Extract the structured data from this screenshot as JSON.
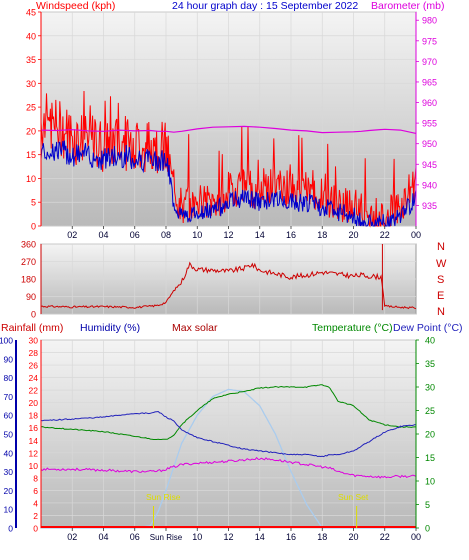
{
  "header": {
    "wind_title": "Windspeed (kph)",
    "graph_title": "24 hour graph day : 15 September 2022",
    "baro_title": "Barometer (mb)"
  },
  "bottom_header": {
    "rainfall": "Rainfall (mm)",
    "humidity": "Humidity (%)",
    "solar": "Max solar",
    "temperature": "Temperature (°C)",
    "dewpoint": "Dew Point (°C)"
  },
  "x_ticks": [
    "02",
    "04",
    "06",
    "08",
    "10",
    "12",
    "14",
    "16",
    "18",
    "20",
    "22",
    "00"
  ],
  "x_ticks_bottom": [
    "02",
    "04",
    "06",
    "Sun Rise",
    "10",
    "12",
    "14",
    "16",
    "18",
    "20",
    "22",
    "00"
  ],
  "sun_labels": {
    "rise": "Sun Rise",
    "set": "Sun Set"
  },
  "compass": [
    "N",
    "W",
    "S",
    "E",
    "N"
  ],
  "colors": {
    "wind": "#ff0000",
    "wind_avg": "#0000cc",
    "baro": "#dd00dd",
    "direction": "#cc0000",
    "humidity": "#0000aa",
    "temperature": "#008800",
    "dewpoint": "#2222bb",
    "solar": "#aaccee",
    "rain": "#ff0000",
    "suntext": "#dddd00"
  },
  "chart_data": [
    {
      "type": "line",
      "title": "24 hour graph day : 15 September 2022",
      "ylabel": "Windspeed (kph)",
      "y2label": "Barometer (mb)",
      "x": [
        0,
        1,
        2,
        3,
        4,
        5,
        6,
        7,
        7.5,
        8,
        8.5,
        9,
        10,
        11,
        12,
        13,
        14,
        15,
        16,
        17,
        18,
        19,
        20,
        20.5,
        21,
        22,
        23,
        24
      ],
      "ylim": [
        0,
        45
      ],
      "y_ticks": [
        "0",
        "5",
        "10",
        "15",
        "20",
        "25",
        "30",
        "35",
        "40",
        "45"
      ],
      "y2lim": [
        930,
        982
      ],
      "y2_ticks": [
        "935",
        "940",
        "945",
        "950",
        "955",
        "960",
        "965",
        "970",
        "975",
        "980"
      ],
      "series": [
        {
          "name": "Windspeed",
          "values": [
            22,
            21,
            19,
            18,
            17,
            18,
            17,
            17,
            17,
            16,
            8,
            4,
            5,
            5,
            7,
            9,
            7,
            9,
            7,
            8,
            6,
            5,
            4,
            3,
            2,
            2,
            4,
            10
          ]
        },
        {
          "name": "Average",
          "values": [
            16,
            16,
            15,
            15,
            14,
            15,
            14,
            14,
            14,
            14,
            5,
            2,
            3,
            3,
            5,
            6,
            5,
            6,
            5,
            5,
            4,
            3,
            2,
            1,
            0.5,
            0.5,
            2,
            6
          ]
        },
        {
          "name": "Barometer",
          "values": [
            953.3,
            953.2,
            953.4,
            953.1,
            953.0,
            953.3,
            953.1,
            953.2,
            953.0,
            953.0,
            952.8,
            953.0,
            953.6,
            954.0,
            954.1,
            954.2,
            954.0,
            953.7,
            953.3,
            953.1,
            952.7,
            952.8,
            952.9,
            953.0,
            953.2,
            953.5,
            953.3,
            952.5
          ]
        }
      ]
    },
    {
      "type": "line",
      "ylabel": "Wind direction",
      "ylim": [
        0,
        360
      ],
      "y_ticks": [
        "0",
        "90",
        "180",
        "270",
        "360"
      ],
      "x": [
        0,
        2,
        4,
        6,
        7,
        7.5,
        8,
        8.5,
        9,
        9.5,
        10,
        12,
        13,
        13.5,
        14,
        16,
        17,
        18,
        19,
        20,
        20.5,
        21,
        21.8,
        22,
        23,
        23.8,
        24
      ],
      "values": [
        40,
        36,
        38,
        34,
        40,
        45,
        60,
        120,
        165,
        255,
        230,
        220,
        235,
        255,
        225,
        190,
        200,
        215,
        205,
        195,
        200,
        195,
        190,
        40,
        35,
        32,
        30
      ]
    },
    {
      "type": "line",
      "ylabel": "Humidity (%)",
      "y2label": "Temperature (°C)",
      "x": [
        0,
        2,
        4,
        6,
        7,
        7.5,
        8,
        8.5,
        9,
        10,
        11,
        12,
        13,
        14,
        15,
        16,
        17,
        18,
        18.5,
        19,
        20,
        21,
        22,
        23,
        24
      ],
      "humidity_ylim": [
        0,
        100
      ],
      "humidity_ticks": [
        "0",
        "10",
        "20",
        "30",
        "40",
        "50",
        "60",
        "70",
        "80",
        "90",
        "100"
      ],
      "rain_ylim": [
        0,
        30
      ],
      "rain_ticks": [
        "0",
        "2",
        "4",
        "6",
        "8",
        "10",
        "12",
        "14",
        "16",
        "18",
        "20",
        "22",
        "24",
        "26",
        "28",
        "30"
      ],
      "temp_ylim": [
        0,
        40
      ],
      "temp_ticks": [
        "0",
        "5",
        "10",
        "15",
        "20",
        "25",
        "30",
        "35",
        "40"
      ],
      "series": [
        {
          "name": "Humidity",
          "values": [
            57,
            58,
            59,
            61,
            61,
            62,
            59,
            57,
            52,
            48,
            46,
            44,
            42,
            41,
            40,
            39,
            39,
            38,
            39,
            39,
            41,
            46,
            51,
            54,
            55
          ]
        },
        {
          "name": "Temperature",
          "values": [
            21.5,
            21,
            20.5,
            19.5,
            19,
            18.8,
            18.8,
            19.8,
            22,
            25,
            27.5,
            28.5,
            29,
            29.8,
            30,
            30,
            30,
            30.5,
            29.8,
            27,
            26,
            23,
            22,
            21.5,
            21.5
          ]
        },
        {
          "name": "Dew Point",
          "values": [
            12.5,
            12.5,
            12.3,
            12,
            12,
            12.1,
            12.5,
            13,
            13.5,
            13.8,
            14,
            14.2,
            14.5,
            14.8,
            14.5,
            14,
            13.5,
            13,
            12.7,
            12,
            11.2,
            11,
            10.8,
            11,
            11
          ]
        },
        {
          "name": "Max solar",
          "values": [
            0,
            0,
            0,
            0,
            0.5,
            3.5,
            8,
            13,
            18,
            24,
            28,
            29.5,
            29,
            26,
            20,
            12,
            5,
            0,
            0,
            0,
            0,
            0,
            0,
            0,
            0
          ]
        },
        {
          "name": "Rainfall",
          "values": [
            0,
            0,
            0,
            0,
            0,
            0,
            0,
            0,
            0,
            0,
            0,
            0,
            0,
            0,
            0,
            0,
            0,
            0,
            0,
            0,
            0,
            0,
            0,
            0,
            0
          ]
        }
      ],
      "sunrise_hour": 7.2,
      "sunset_hour": 20.2
    }
  ]
}
